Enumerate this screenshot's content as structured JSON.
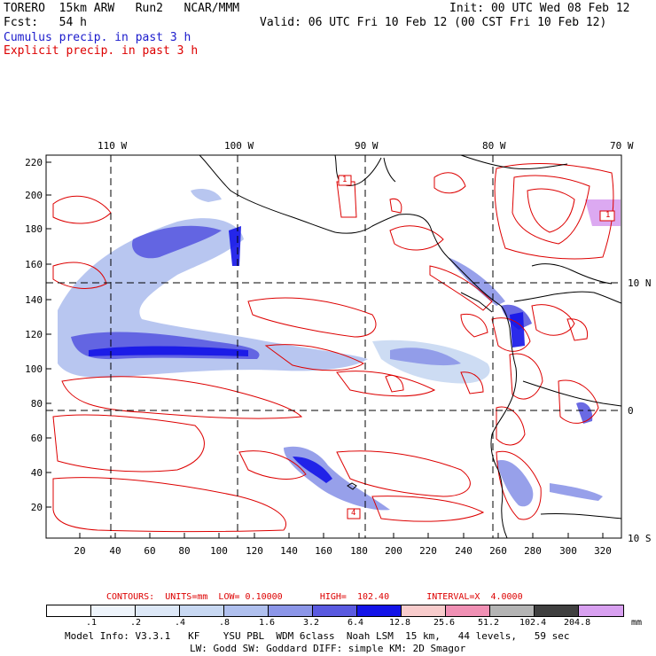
{
  "header": {
    "model": "TORERO  15km ARW   Run2   NCAR/MMM",
    "init": "Init: 00 UTC Wed 08 Feb 12",
    "fcst": "Fcst:   54 h",
    "valid": "Valid: 06 UTC Fri 10 Feb 12 (00 CST Fri 10 Feb 12)",
    "field1": "Cumulus precip. in past 3 h",
    "field2": "Explicit precip. in past 3 h"
  },
  "colors": {
    "field1": "#1a1acc",
    "field2": "#dd0000",
    "contour": "#dd0000",
    "coast": "#000000"
  },
  "axes": {
    "y_ticks": [
      "220",
      "200",
      "180",
      "160",
      "140",
      "120",
      "100",
      "80",
      "60",
      "40",
      "20"
    ],
    "x_ticks": [
      "20",
      "40",
      "60",
      "80",
      "100",
      "120",
      "140",
      "160",
      "180",
      "200",
      "220",
      "240",
      "260",
      "280",
      "300",
      "320"
    ],
    "lon_labels": [
      "110 W",
      "100 W",
      "90 W",
      "80 W",
      "70 W"
    ],
    "lat_labels": [
      "10 N",
      "0",
      "10 S"
    ]
  },
  "markers": [
    "1",
    "1",
    "4"
  ],
  "footer": {
    "contours": "CONTOURS:  UNITS=mm  LOW= 0.10000       HIGH=  102.40       INTERVAL=X  4.0000",
    "unit": "mm",
    "model_info": "Model Info: V3.3.1   KF    YSU PBL  WDM 6class  Noah LSM  15 km,   44 levels,   59 sec",
    "model_info2": "LW: Godd SW: Goddard DIFF: simple KM: 2D Smagor"
  },
  "colorbar": {
    "labels": [
      ".1",
      ".2",
      ".4",
      ".8",
      "1.6",
      "3.2",
      "6.4",
      "12.8",
      "25.6",
      "51.2",
      "102.4",
      "204.8"
    ],
    "colors": [
      "#ffffff",
      "#eef4fb",
      "#dde8f7",
      "#c8d8f2",
      "#b0c0ee",
      "#8c96e8",
      "#5a5ae0",
      "#1414e8",
      "#f8cccc",
      "#f090b4",
      "#b4b4b4",
      "#404040",
      "#d8a0f0"
    ]
  }
}
